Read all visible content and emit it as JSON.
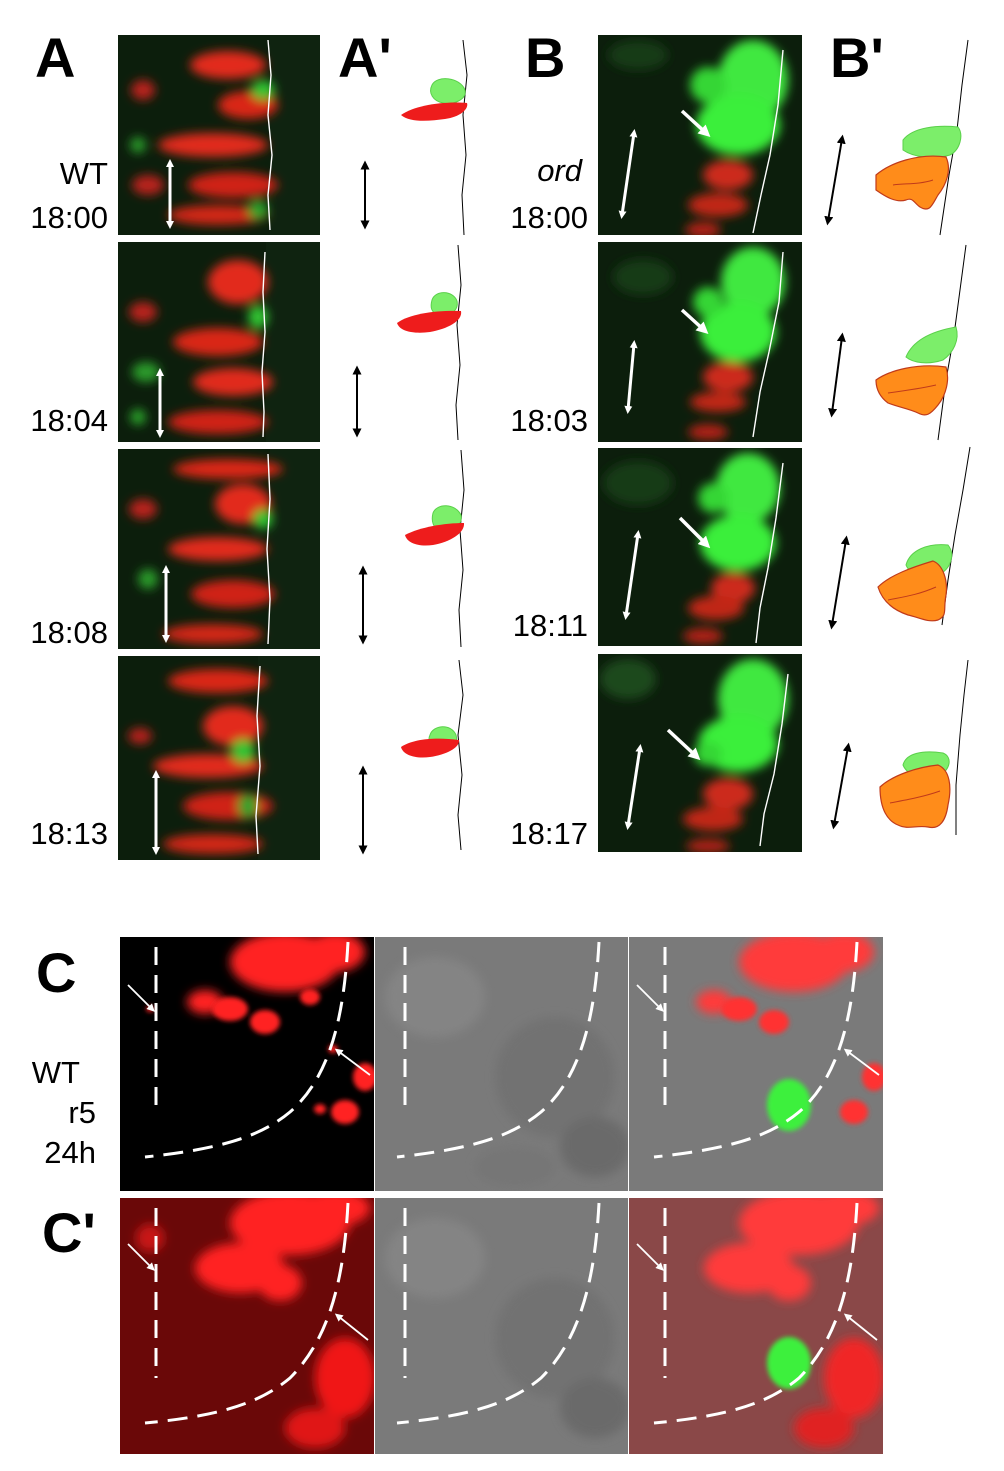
{
  "panel_labels": {
    "A": "A",
    "A_prime": "A'",
    "B": "B",
    "B_prime": "B'",
    "C": "C",
    "C_prime": "C'"
  },
  "panel_A": {
    "genotype": "WT",
    "times": [
      "18:00",
      "18:04",
      "18:08",
      "18:13"
    ]
  },
  "panel_B": {
    "genotype": "ord",
    "times": [
      "18:00",
      "18:03",
      "18:11",
      "18:17"
    ]
  },
  "panel_C": {
    "genotype": "WT",
    "rhombomere": "r5",
    "stage": "24h"
  },
  "colors": {
    "wt_red_cells": "#ff2020",
    "gfp_green": "#33ee33",
    "ord_orange_cells": "#ff8c1a",
    "background_dark": "#0c1e0c"
  },
  "icons": [
    "double-headed-arrow-icon",
    "pointer-arrow-icon"
  ]
}
